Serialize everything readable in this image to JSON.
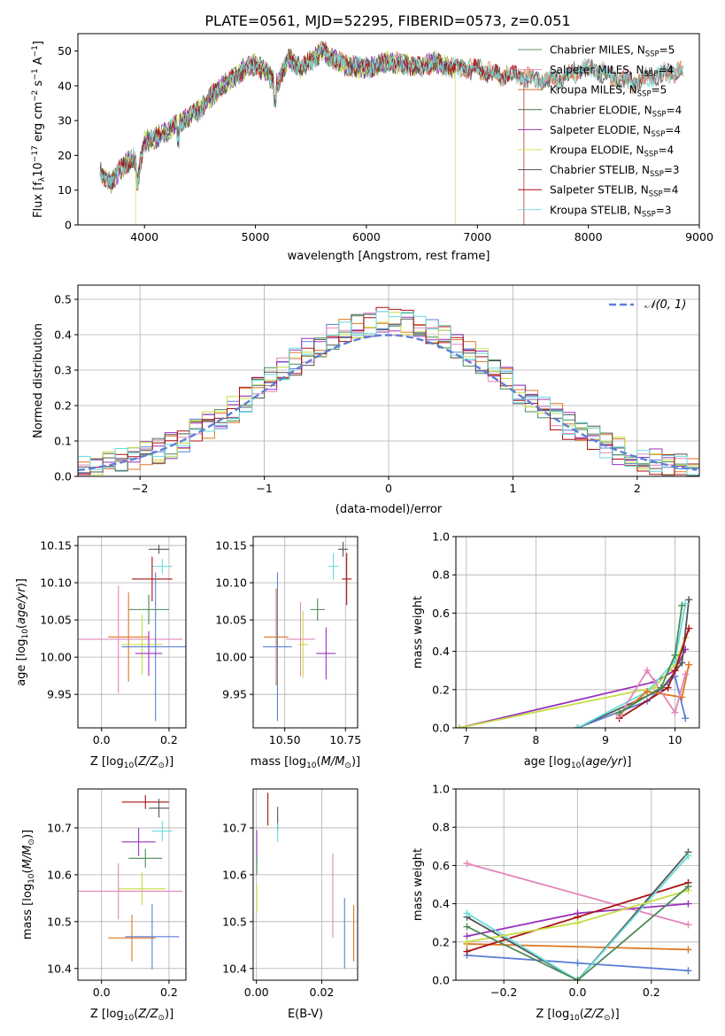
{
  "figure": {
    "title": "PLATE=0561, MJD=52295, FIBERID=0573, z=0.051"
  },
  "colors": {
    "Chabrier MILES": "#6a8f6a",
    "Salpeter MILES": "#ee88bb",
    "Kroupa MILES": "#dd7733",
    "Chabrier ELODIE": "#44774a",
    "Salpeter ELODIE": "#9933bb",
    "Kroupa ELODIE": "#cce055",
    "Chabrier STELIB": "#555555",
    "Salpeter STELIB": "#aa1111",
    "Kroupa STELIB": "#77dddd",
    "blue": "#5b7fd6",
    "orange": "#dd7722",
    "pink": "#e485b9",
    "green": "#4a8a55",
    "purple": "#9933bb",
    "lime": "#c6dd44",
    "gray": "#555555",
    "red": "#aa1111",
    "cyan": "#66dddd"
  },
  "chart_data": [
    {
      "id": "spectrum",
      "type": "line",
      "xlabel": "wavelength [Angstrom, rest frame]",
      "ylabel": "Flux [f_λ 10^-17 erg cm^-2 s^-1 A^-1]",
      "xlim": [
        3400,
        9000
      ],
      "ylim": [
        0,
        55
      ],
      "xticks": [
        4000,
        5000,
        6000,
        7000,
        8000,
        9000
      ],
      "yticks": [
        0,
        10,
        20,
        30,
        40,
        50
      ],
      "grid": false,
      "legend_position": "right",
      "continuum_x": [
        3600,
        3700,
        3800,
        3900,
        3950,
        4000,
        4100,
        4200,
        4300,
        4400,
        4500,
        4600,
        4700,
        4800,
        4900,
        5000,
        5100,
        5200,
        5300,
        5400,
        5500,
        5600,
        5800,
        6000,
        6200,
        6400,
        6500,
        6600,
        6800,
        7000,
        7200,
        7400,
        7600,
        7800,
        8000,
        8200,
        8400,
        8600,
        8800
      ],
      "continuum_y": [
        15,
        12,
        17,
        19,
        15,
        24,
        25,
        27,
        29,
        31,
        33,
        37,
        40,
        42,
        45,
        46,
        44,
        40,
        48,
        45,
        47,
        50,
        46,
        45,
        47,
        46,
        45,
        47,
        45,
        45,
        43,
        43,
        41,
        43,
        45,
        43,
        41,
        43,
        44
      ],
      "series": [
        {
          "name": "Chabrier MILES, N_SSP=5",
          "label_main": "Chabrier MILES, N",
          "label_sub": "SSP",
          "label_end": "=5"
        },
        {
          "name": "Salpeter MILES, N_SSP=4",
          "label_main": "Salpeter MILES, N",
          "label_sub": "SSP",
          "label_end": "=4"
        },
        {
          "name": "Kroupa MILES, N_SSP=5",
          "label_main": "Kroupa MILES, N",
          "label_sub": "SSP",
          "label_end": "=5"
        },
        {
          "name": "Chabrier ELODIE, N_SSP=4",
          "label_main": "Chabrier ELODIE, N",
          "label_sub": "SSP",
          "label_end": "=4"
        },
        {
          "name": "Salpeter ELODIE, N_SSP=4",
          "label_main": "Salpeter ELODIE, N",
          "label_sub": "SSP",
          "label_end": "=4"
        },
        {
          "name": "Kroupa ELODIE, N_SSP=4",
          "label_main": "Kroupa ELODIE, N",
          "label_sub": "SSP",
          "label_end": "=4"
        },
        {
          "name": "Chabrier STELIB, N_SSP=3",
          "label_main": "Chabrier STELIB, N",
          "label_sub": "SSP",
          "label_end": "=3"
        },
        {
          "name": "Salpeter STELIB, N_SSP=4",
          "label_main": "Salpeter STELIB, N",
          "label_sub": "SSP",
          "label_end": "=4"
        },
        {
          "name": "Kroupa STELIB, N_SSP=3",
          "label_main": "Kroupa STELIB, N",
          "label_sub": "SSP",
          "label_end": "=3"
        }
      ],
      "drops": [
        {
          "x": 3920,
          "series": "Kroupa ELODIE"
        },
        {
          "x": 6800,
          "series": "Kroupa ELODIE"
        },
        {
          "x": 7420,
          "series": "Salpeter STELIB"
        }
      ]
    },
    {
      "id": "residuals",
      "type": "step",
      "xlabel": "(data-model)/error",
      "ylabel": "Normed distribution",
      "xlim": [
        -2.5,
        2.5
      ],
      "ylim": [
        0,
        0.54
      ],
      "xticks": [
        -2,
        -1,
        0,
        1,
        2
      ],
      "yticks": [
        0.0,
        0.1,
        0.2,
        0.3,
        0.4,
        0.5
      ],
      "grid": true,
      "legend_position": "top-right",
      "reference_curve": {
        "name": "N(0,1)",
        "label": "𝒩(0, 1)",
        "mean": 0,
        "sigma": 1
      }
    },
    {
      "id": "age-vs-Z",
      "type": "errorbar",
      "xlabel": "Z [log10(Z/Z⊙)]",
      "ylabel": "age [log10(age/yr)]",
      "xlim": [
        -0.07,
        0.25
      ],
      "ylim": [
        9.905,
        10.162
      ],
      "xticks": [
        0.0,
        0.2
      ],
      "yticks": [
        9.95,
        10.0,
        10.05,
        10.1,
        10.15
      ],
      "grid": true,
      "points": [
        {
          "c": "gray",
          "x": 0.17,
          "y": 10.145,
          "xerr": 0.03,
          "yerr": 0.006
        },
        {
          "c": "cyan",
          "x": 0.18,
          "y": 10.122,
          "xerr": 0.03,
          "yerr": 0.01
        },
        {
          "c": "red",
          "x": 0.15,
          "y": 10.105,
          "xerr": 0.06,
          "yerr": 0.03
        },
        {
          "c": "green",
          "x": 0.14,
          "y": 10.064,
          "xerr": 0.06,
          "yerr": 0.02
        },
        {
          "c": "orange",
          "x": 0.08,
          "y": 10.027,
          "xerr": 0.06,
          "yerr": 0.06
        },
        {
          "c": "pink",
          "x": 0.05,
          "y": 10.024,
          "xerr": 0.19,
          "yerr": 0.072
        },
        {
          "c": "lime",
          "x": 0.12,
          "y": 10.017,
          "xerr": 0.06,
          "yerr": 0.04
        },
        {
          "c": "blue",
          "x": 0.16,
          "y": 10.014,
          "xerr": 0.1,
          "yerr": 0.1
        },
        {
          "c": "purple",
          "x": 0.14,
          "y": 10.005,
          "xerr": 0.04,
          "yerr": 0.03
        }
      ]
    },
    {
      "id": "age-vs-mass",
      "type": "errorbar",
      "xlabel": "mass [log10(M/M⊙)]",
      "ylabel": "",
      "xlim": [
        10.37,
        10.8
      ],
      "ylim": [
        9.905,
        10.162
      ],
      "xticks": [
        10.5,
        10.75
      ],
      "yticks": [
        9.95,
        10.0,
        10.05,
        10.1,
        10.15
      ],
      "grid": true,
      "points": [
        {
          "c": "gray",
          "x": 10.74,
          "y": 10.145,
          "xerr": 0.02,
          "yerr": 0.01
        },
        {
          "c": "cyan",
          "x": 10.7,
          "y": 10.122,
          "xerr": 0.02,
          "yerr": 0.018
        },
        {
          "c": "red",
          "x": 10.755,
          "y": 10.105,
          "xerr": 0.02,
          "yerr": 0.035
        },
        {
          "c": "green",
          "x": 10.635,
          "y": 10.064,
          "xerr": 0.03,
          "yerr": 0.015
        },
        {
          "c": "orange",
          "x": 10.465,
          "y": 10.027,
          "xerr": 0.05,
          "yerr": 0.065
        },
        {
          "c": "pink",
          "x": 10.565,
          "y": 10.024,
          "xerr": 0.06,
          "yerr": 0.05
        },
        {
          "c": "lime",
          "x": 10.575,
          "y": 10.017,
          "xerr": 0.02,
          "yerr": 0.045
        },
        {
          "c": "blue",
          "x": 10.47,
          "y": 10.014,
          "xerr": 0.06,
          "yerr": 0.1
        },
        {
          "c": "purple",
          "x": 10.67,
          "y": 10.005,
          "xerr": 0.04,
          "yerr": 0.035
        }
      ]
    },
    {
      "id": "weight-vs-age",
      "type": "line",
      "xlabel": "age [log10(age/yr)]",
      "ylabel": "mass weight",
      "xlim": [
        6.85,
        10.35
      ],
      "ylim": [
        0,
        1.0
      ],
      "xticks": [
        7,
        8,
        9,
        10
      ],
      "yticks": [
        0.0,
        0.2,
        0.4,
        0.6,
        0.8,
        1.0
      ],
      "grid": true,
      "series": [
        {
          "c": "purple",
          "x": [
            6.9,
            9.7,
            10.0,
            10.15
          ],
          "y": [
            0.0,
            0.24,
            0.3,
            0.41
          ]
        },
        {
          "c": "lime",
          "x": [
            6.9,
            9.7,
            10.0,
            10.15
          ],
          "y": [
            0.0,
            0.21,
            0.33,
            0.47
          ]
        },
        {
          "c": "blue",
          "x": [
            8.6,
            9.6,
            10.0,
            10.15
          ],
          "y": [
            0.0,
            0.14,
            0.27,
            0.05
          ]
        },
        {
          "c": "gray",
          "x": [
            8.6,
            9.8,
            10.1,
            10.2
          ],
          "y": [
            0.0,
            0.2,
            0.34,
            0.67
          ]
        },
        {
          "c": "cyan",
          "x": [
            8.6,
            9.6,
            10.0,
            10.15
          ],
          "y": [
            0.0,
            0.19,
            0.35,
            0.65
          ]
        },
        {
          "c": "red",
          "x": [
            9.2,
            9.9,
            10.0,
            10.2
          ],
          "y": [
            0.05,
            0.21,
            0.3,
            0.52
          ]
        },
        {
          "c": "orange",
          "x": [
            9.2,
            9.6,
            10.1,
            10.2
          ],
          "y": [
            0.07,
            0.19,
            0.16,
            0.33
          ]
        },
        {
          "c": "pink",
          "x": [
            9.2,
            9.6,
            10.0,
            10.15
          ],
          "y": [
            0.06,
            0.3,
            0.08,
            0.28
          ]
        },
        {
          "c": "green",
          "x": [
            9.2,
            9.8,
            10.0,
            10.1
          ],
          "y": [
            0.08,
            0.21,
            0.38,
            0.64
          ]
        }
      ]
    },
    {
      "id": "mass-vs-Z",
      "type": "errorbar",
      "xlabel": "Z [log10(Z/Z⊙)]",
      "ylabel": "mass [log10(M/M⊙)]",
      "xlim": [
        -0.07,
        0.25
      ],
      "ylim": [
        10.375,
        10.783
      ],
      "xticks": [
        0.0,
        0.2
      ],
      "yticks": [
        10.4,
        10.5,
        10.6,
        10.7
      ],
      "grid": true,
      "points": [
        {
          "c": "red",
          "x": 0.13,
          "y": 10.755,
          "xerr": 0.07,
          "yerr": 0.015
        },
        {
          "c": "gray",
          "x": 0.17,
          "y": 10.742,
          "xerr": 0.03,
          "yerr": 0.02
        },
        {
          "c": "cyan",
          "x": 0.18,
          "y": 10.693,
          "xerr": 0.03,
          "yerr": 0.022
        },
        {
          "c": "purple",
          "x": 0.11,
          "y": 10.67,
          "xerr": 0.05,
          "yerr": 0.03
        },
        {
          "c": "green",
          "x": 0.13,
          "y": 10.635,
          "xerr": 0.05,
          "yerr": 0.02
        },
        {
          "c": "lime",
          "x": 0.12,
          "y": 10.57,
          "xerr": 0.07,
          "yerr": 0.035
        },
        {
          "c": "pink",
          "x": 0.05,
          "y": 10.565,
          "xerr": 0.19,
          "yerr": 0.06
        },
        {
          "c": "orange",
          "x": 0.09,
          "y": 10.465,
          "xerr": 0.07,
          "yerr": 0.05
        },
        {
          "c": "blue",
          "x": 0.15,
          "y": 10.468,
          "xerr": 0.08,
          "yerr": 0.07
        }
      ]
    },
    {
      "id": "mass-vs-ebv",
      "type": "errorbar",
      "xlabel": "E(B-V)",
      "ylabel": "",
      "xlim": [
        -0.001,
        0.031
      ],
      "ylim": [
        10.375,
        10.783
      ],
      "xticks": [
        0.0,
        0.02
      ],
      "yticks": [
        10.4,
        10.5,
        10.6,
        10.7
      ],
      "grid": true,
      "points": [
        {
          "c": "red",
          "x": 0.0035,
          "y": 10.74,
          "xerr": 0,
          "yerr": 0.035
        },
        {
          "c": "gray",
          "x": 0.0065,
          "y": 10.72,
          "xerr": 0,
          "yerr": 0.025
        },
        {
          "c": "cyan",
          "x": 0.0065,
          "y": 10.69,
          "xerr": 0,
          "yerr": 0.02
        },
        {
          "c": "purple",
          "x": 0.0001,
          "y": 10.66,
          "xerr": 0,
          "yerr": 0.035
        },
        {
          "c": "green",
          "x": 0.0001,
          "y": 10.62,
          "xerr": 0,
          "yerr": 0.02
        },
        {
          "c": "lime",
          "x": 0.0001,
          "y": 10.55,
          "xerr": 0,
          "yerr": 0.03
        },
        {
          "c": "pink",
          "x": 0.0234,
          "y": 10.555,
          "xerr": 0,
          "yerr": 0.09
        },
        {
          "c": "blue",
          "x": 0.027,
          "y": 10.475,
          "xerr": 0,
          "yerr": 0.075
        },
        {
          "c": "orange",
          "x": 0.0298,
          "y": 10.475,
          "xerr": 0,
          "yerr": 0.06
        }
      ]
    },
    {
      "id": "weight-vs-Z",
      "type": "line",
      "xlabel": "Z [log10(Z/Z⊙)]",
      "ylabel": "mass weight",
      "xlim": [
        -0.33,
        0.33
      ],
      "ylim": [
        0,
        1.0
      ],
      "xticks": [
        -0.2,
        0.0,
        0.2
      ],
      "yticks": [
        0.0,
        0.2,
        0.4,
        0.6,
        0.8,
        1.0
      ],
      "grid": true,
      "series": [
        {
          "c": "pink",
          "x": [
            -0.3,
            0.3
          ],
          "y": [
            0.61,
            0.29
          ]
        },
        {
          "c": "blue",
          "x": [
            -0.3,
            0.0,
            0.3
          ],
          "y": [
            0.13,
            0.09,
            0.05
          ]
        },
        {
          "c": "orange",
          "x": [
            -0.3,
            0.3
          ],
          "y": [
            0.19,
            0.16
          ]
        },
        {
          "c": "purple",
          "x": [
            -0.3,
            0.0,
            0.3
          ],
          "y": [
            0.23,
            0.35,
            0.4
          ]
        },
        {
          "c": "red",
          "x": [
            -0.3,
            0.0,
            0.3
          ],
          "y": [
            0.15,
            0.33,
            0.51
          ]
        },
        {
          "c": "gray",
          "x": [
            -0.3,
            0.0,
            0.3
          ],
          "y": [
            0.33,
            0.0,
            0.67
          ]
        },
        {
          "c": "cyan",
          "x": [
            -0.3,
            0.0,
            0.3
          ],
          "y": [
            0.35,
            0.0,
            0.65
          ]
        },
        {
          "c": "lime",
          "x": [
            -0.3,
            0.0,
            0.3
          ],
          "y": [
            0.2,
            0.3,
            0.47
          ]
        },
        {
          "c": "green",
          "x": [
            -0.3,
            0.0,
            0.3
          ],
          "y": [
            0.28,
            0.0,
            0.49
          ]
        }
      ]
    }
  ]
}
